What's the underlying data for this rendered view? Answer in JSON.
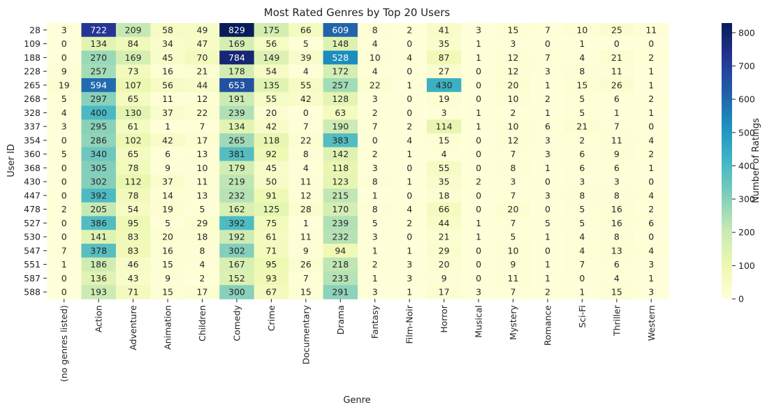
{
  "chart_data": {
    "type": "heatmap",
    "title": "Most Rated Genres by Top 20 Users",
    "xlabel": "Genre",
    "ylabel": "User ID",
    "colorbar_label": "Number of Ratings",
    "colormap": "YlGnBu",
    "value_range": [
      0,
      829
    ],
    "colorbar_ticks": [
      0,
      100,
      200,
      300,
      400,
      500,
      600,
      700,
      800
    ],
    "x_categories": [
      "(no genres listed)",
      "Action",
      "Adventure",
      "Animation",
      "Children",
      "Comedy",
      "Crime",
      "Documentary",
      "Drama",
      "Fantasy",
      "Film-Noir",
      "Horror",
      "Musical",
      "Mystery",
      "Romance",
      "Sci-Fi",
      "Thriller",
      "Western"
    ],
    "y_categories": [
      "28",
      "109",
      "188",
      "228",
      "265",
      "268",
      "328",
      "337",
      "354",
      "360",
      "368",
      "430",
      "447",
      "478",
      "527",
      "530",
      "547",
      "551",
      "587",
      "588"
    ],
    "values": [
      [
        3,
        722,
        209,
        58,
        49,
        829,
        175,
        66,
        609,
        8,
        2,
        41,
        3,
        15,
        7,
        10,
        25,
        11
      ],
      [
        0,
        134,
        84,
        34,
        47,
        169,
        56,
        5,
        148,
        4,
        0,
        35,
        1,
        3,
        0,
        1,
        0,
        0
      ],
      [
        0,
        270,
        169,
        45,
        70,
        784,
        149,
        39,
        528,
        10,
        4,
        87,
        1,
        12,
        7,
        4,
        21,
        2
      ],
      [
        9,
        257,
        73,
        16,
        21,
        178,
        54,
        4,
        172,
        4,
        0,
        27,
        0,
        12,
        3,
        8,
        11,
        1
      ],
      [
        19,
        594,
        107,
        56,
        44,
        653,
        135,
        55,
        257,
        22,
        1,
        430,
        0,
        20,
        1,
        15,
        26,
        1
      ],
      [
        5,
        297,
        65,
        11,
        12,
        191,
        55,
        42,
        128,
        3,
        0,
        19,
        0,
        10,
        2,
        5,
        6,
        2
      ],
      [
        4,
        400,
        130,
        37,
        22,
        239,
        20,
        0,
        63,
        2,
        0,
        3,
        1,
        2,
        1,
        5,
        1,
        1
      ],
      [
        3,
        295,
        61,
        1,
        7,
        134,
        42,
        7,
        190,
        7,
        2,
        114,
        1,
        10,
        6,
        21,
        7,
        0
      ],
      [
        0,
        286,
        102,
        42,
        17,
        265,
        118,
        22,
        383,
        0,
        4,
        15,
        0,
        12,
        3,
        2,
        11,
        4
      ],
      [
        5,
        340,
        65,
        6,
        13,
        381,
        92,
        8,
        142,
        2,
        1,
        4,
        0,
        7,
        3,
        6,
        9,
        2
      ],
      [
        0,
        305,
        78,
        9,
        10,
        179,
        45,
        4,
        118,
        3,
        0,
        55,
        0,
        8,
        1,
        6,
        6,
        1
      ],
      [
        0,
        302,
        112,
        37,
        11,
        219,
        50,
        11,
        123,
        8,
        1,
        35,
        2,
        3,
        0,
        3,
        3,
        0
      ],
      [
        0,
        392,
        78,
        14,
        13,
        232,
        91,
        12,
        215,
        1,
        0,
        18,
        0,
        7,
        3,
        8,
        8,
        4
      ],
      [
        2,
        205,
        54,
        19,
        5,
        162,
        125,
        28,
        170,
        8,
        4,
        66,
        0,
        20,
        0,
        5,
        16,
        2
      ],
      [
        0,
        386,
        95,
        5,
        29,
        392,
        75,
        1,
        239,
        5,
        2,
        44,
        1,
        7,
        5,
        5,
        16,
        6
      ],
      [
        0,
        141,
        83,
        20,
        18,
        192,
        61,
        11,
        232,
        3,
        0,
        21,
        1,
        5,
        1,
        4,
        8,
        0
      ],
      [
        7,
        378,
        83,
        16,
        8,
        302,
        71,
        9,
        94,
        1,
        1,
        29,
        0,
        10,
        0,
        4,
        13,
        4
      ],
      [
        1,
        186,
        46,
        15,
        4,
        167,
        95,
        26,
        218,
        2,
        3,
        20,
        0,
        9,
        1,
        7,
        6,
        3
      ],
      [
        0,
        136,
        43,
        9,
        2,
        152,
        93,
        7,
        233,
        1,
        3,
        9,
        0,
        11,
        1,
        0,
        4,
        1
      ],
      [
        0,
        193,
        71,
        15,
        17,
        300,
        67,
        15,
        291,
        3,
        1,
        17,
        3,
        7,
        2,
        1,
        15,
        3
      ]
    ],
    "annotations": true,
    "grid": false
  }
}
